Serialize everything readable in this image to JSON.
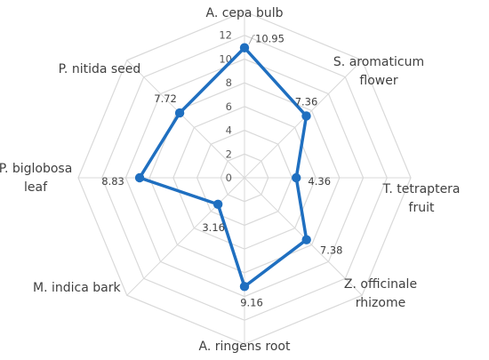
{
  "chart_data": {
    "type": "radar",
    "categories": [
      "A. cepa bulb",
      "S. aromaticum flower",
      "T. tetraptera fruit",
      "Z. officinale rhizome",
      "A. ringens root",
      "M. indica bark",
      "P. biglobosa leaf",
      "P. nitida seed"
    ],
    "values": [
      10.95,
      7.36,
      4.36,
      7.38,
      9.16,
      3.16,
      8.83,
      7.72
    ],
    "value_labels": [
      "10.95",
      "7.36",
      "4.36",
      "7.38",
      "9.16",
      "3.16",
      "8.83",
      "7.72"
    ],
    "ticks": [
      "0",
      "2",
      "4",
      "6",
      "8",
      "10",
      "12"
    ],
    "ylim": [
      0,
      14
    ],
    "grid": true,
    "legend": "none",
    "series_color": "#1f6fc0",
    "grid_color": "#d9d9d9"
  }
}
